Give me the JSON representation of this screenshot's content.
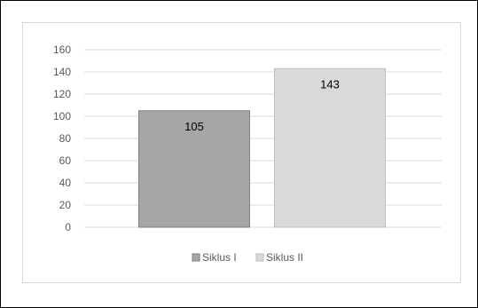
{
  "chart_data": {
    "type": "bar",
    "title": "",
    "xlabel": "",
    "ylabel": "",
    "categories": [
      "Siklus I",
      "Siklus II"
    ],
    "values": [
      105,
      143
    ],
    "ylim": [
      0,
      160
    ],
    "yticks": [
      0,
      20,
      40,
      60,
      80,
      100,
      120,
      140,
      160
    ],
    "data_labels": [
      "105",
      "143"
    ],
    "grid": true,
    "legend": "bottom",
    "colors": {
      "bars": [
        "#a6a6a6",
        "#d9d9d9"
      ],
      "bar_stroke": [
        "#7f7f7f",
        "#bfbfbf"
      ],
      "grid": "#d9d9d9",
      "text": "#595959"
    }
  }
}
